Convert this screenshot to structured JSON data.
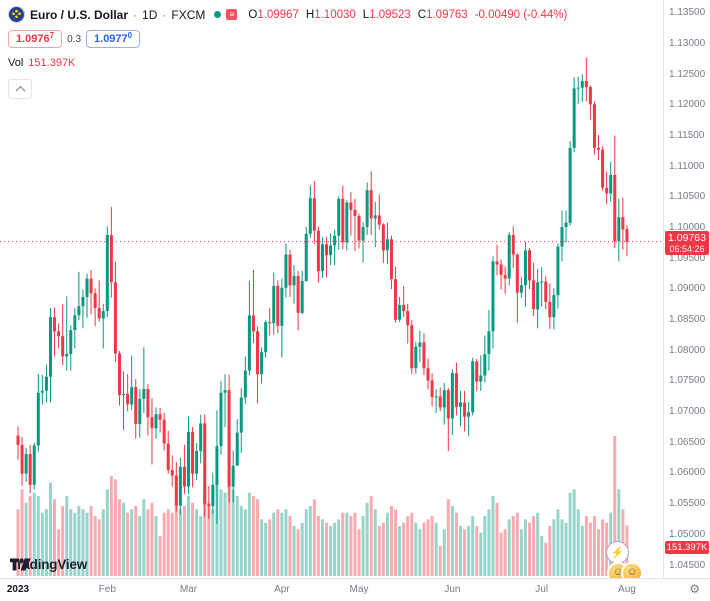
{
  "header": {
    "symbol": "Euro / U.S. Dollar",
    "sep": "·",
    "interval": "1D",
    "exchange": "FXCM",
    "ohlc": {
      "o_label": "O",
      "o": "1.09967",
      "h_label": "H",
      "h": "1.10030",
      "l_label": "L",
      "l": "1.09523",
      "c_label": "C",
      "c": "1.09763",
      "change": "-0.00490 (-0.44%)"
    },
    "bid": {
      "main": "1.0976",
      "sup": "7"
    },
    "spread": "0.3",
    "ask": {
      "main": "1.0977",
      "sup": "0"
    },
    "vol_label": "Vol",
    "vol_value": "151.397K"
  },
  "badges": {
    "price": "1.09763",
    "countdown": "06:54:26",
    "volume": "151.397K"
  },
  "footer": {
    "logo_text": "TradingView"
  },
  "icons": {
    "list_glyph": "≡",
    "zap_glyph": "⚡",
    "smile_glyph": "☺",
    "gear_glyph": "⚙"
  },
  "chart_data": {
    "type": "candlestick",
    "title": "Euro / U.S. Dollar",
    "symbol": "EUR/USD",
    "interval": "1D",
    "exchange": "FXCM",
    "current": {
      "open": 1.09967,
      "high": 1.1003,
      "low": 1.09523,
      "close": 1.09763,
      "change": -0.0049,
      "change_pct": -0.44,
      "volume_label": "151.397K"
    },
    "price_line": 1.09763,
    "colors": {
      "up": "#089981",
      "down": "#f23645",
      "vol_up": "rgba(8,153,129,0.42)",
      "vol_down": "rgba(242,54,69,0.42)",
      "axis_text": "#787b86",
      "badge": "#f23645",
      "buy": "#2962ff"
    },
    "y_axis": {
      "visible_range": [
        1.0428,
        1.137
      ],
      "tick_labels": [
        "1.13500",
        "1.13000",
        "1.12500",
        "1.12000",
        "1.11500",
        "1.11000",
        "1.10500",
        "1.10000",
        "1.09500",
        "1.09000",
        "1.08500",
        "1.08000",
        "1.07500",
        "1.07000",
        "1.06500",
        "1.06000",
        "1.05500",
        "1.05000",
        "1.04500"
      ]
    },
    "x_axis": {
      "labels": [
        {
          "text": "2023",
          "index": 0,
          "bold": true
        },
        {
          "text": "Feb",
          "index": 22,
          "bold": false
        },
        {
          "text": "Mar",
          "index": 42,
          "bold": false
        },
        {
          "text": "Apr",
          "index": 65,
          "bold": false
        },
        {
          "text": "May",
          "index": 84,
          "bold": false
        },
        {
          "text": "Jun",
          "index": 107,
          "bold": false
        },
        {
          "text": "Jul",
          "index": 129,
          "bold": false
        },
        {
          "text": "Aug",
          "index": 150,
          "bold": false
        }
      ]
    },
    "volume_unit": "K",
    "candles": [
      [
        1.066,
        1.0675,
        1.062,
        1.0645,
        200
      ],
      [
        1.0645,
        1.0658,
        1.0578,
        1.0598,
        260
      ],
      [
        1.0598,
        1.064,
        1.0585,
        1.063,
        220
      ],
      [
        1.063,
        1.0645,
        1.0566,
        1.058,
        240
      ],
      [
        1.058,
        1.0648,
        1.0572,
        1.0644,
        250
      ],
      [
        1.0644,
        1.0761,
        1.0633,
        1.073,
        240
      ],
      [
        1.073,
        1.0759,
        1.0711,
        1.0733,
        190
      ],
      [
        1.0733,
        1.0776,
        1.0714,
        1.0756,
        200
      ],
      [
        1.0756,
        1.0868,
        1.0714,
        1.0853,
        280
      ],
      [
        1.0853,
        1.0869,
        1.0789,
        1.083,
        230
      ],
      [
        1.083,
        1.0843,
        1.0802,
        1.0822,
        140
      ],
      [
        1.0822,
        1.0874,
        1.0775,
        1.0789,
        210
      ],
      [
        1.0789,
        1.0887,
        1.0766,
        1.0793,
        240
      ],
      [
        1.0793,
        1.084,
        1.0766,
        1.0832,
        200
      ],
      [
        1.0832,
        1.0868,
        1.0802,
        1.0856,
        190
      ],
      [
        1.0856,
        1.0927,
        1.0848,
        1.0871,
        210
      ],
      [
        1.0871,
        1.0898,
        1.0835,
        1.0886,
        200
      ],
      [
        1.0886,
        1.0924,
        1.0852,
        1.0916,
        190
      ],
      [
        1.0916,
        1.093,
        1.0858,
        1.0892,
        210
      ],
      [
        1.0892,
        1.09,
        1.0838,
        1.0868,
        180
      ],
      [
        1.0868,
        1.0913,
        1.0846,
        1.0851,
        170
      ],
      [
        1.0851,
        1.0875,
        1.0802,
        1.0863,
        200
      ],
      [
        1.0863,
        1.1001,
        1.0853,
        1.0987,
        260
      ],
      [
        1.0987,
        1.1033,
        1.0885,
        1.091,
        300
      ],
      [
        1.091,
        1.0944,
        1.078,
        1.0794,
        290
      ],
      [
        1.0794,
        1.0798,
        1.0709,
        1.0726,
        230
      ],
      [
        1.0726,
        1.0765,
        1.0669,
        1.0728,
        220
      ],
      [
        1.0728,
        1.076,
        1.07,
        1.0711,
        190
      ],
      [
        1.0711,
        1.0791,
        1.0702,
        1.0739,
        200
      ],
      [
        1.0739,
        1.0752,
        1.0655,
        1.0679,
        210
      ],
      [
        1.0679,
        1.0736,
        1.0657,
        1.072,
        180
      ],
      [
        1.072,
        1.0804,
        1.0697,
        1.0736,
        230
      ],
      [
        1.0736,
        1.0744,
        1.066,
        1.069,
        200
      ],
      [
        1.069,
        1.0721,
        1.0613,
        1.0672,
        220
      ],
      [
        1.0672,
        1.0706,
        1.0655,
        1.0695,
        180
      ],
      [
        1.0695,
        1.0705,
        1.0665,
        1.0686,
        120
      ],
      [
        1.0686,
        1.0697,
        1.0636,
        1.0647,
        190
      ],
      [
        1.0647,
        1.0668,
        1.0598,
        1.0604,
        200
      ],
      [
        1.0604,
        1.0628,
        1.0577,
        1.0595,
        190
      ],
      [
        1.0595,
        1.0617,
        1.0536,
        1.0546,
        230
      ],
      [
        1.0546,
        1.0624,
        1.0532,
        1.0609,
        200
      ],
      [
        1.0609,
        1.0645,
        1.0565,
        1.0577,
        210
      ],
      [
        1.0577,
        1.0691,
        1.0565,
        1.0666,
        240
      ],
      [
        1.0666,
        1.0674,
        1.0576,
        1.0598,
        220
      ],
      [
        1.0598,
        1.0648,
        1.0588,
        1.0635,
        200
      ],
      [
        1.0635,
        1.0694,
        1.0615,
        1.068,
        180
      ],
      [
        1.068,
        1.0695,
        1.0528,
        1.0548,
        260
      ],
      [
        1.0548,
        1.0578,
        1.0524,
        1.0545,
        220
      ],
      [
        1.0545,
        1.06,
        1.0533,
        1.058,
        200
      ],
      [
        1.058,
        1.0701,
        1.0516,
        1.0643,
        290
      ],
      [
        1.0643,
        1.0749,
        1.0629,
        1.073,
        260
      ],
      [
        1.073,
        1.076,
        1.0674,
        1.0734,
        250
      ],
      [
        1.0734,
        1.0759,
        1.0551,
        1.0577,
        290
      ],
      [
        1.0577,
        1.0636,
        1.0551,
        1.0611,
        260
      ],
      [
        1.0611,
        1.0687,
        1.0611,
        1.0665,
        240
      ],
      [
        1.0665,
        1.0738,
        1.0632,
        1.0722,
        210
      ],
      [
        1.0722,
        1.0789,
        1.0712,
        1.0766,
        200
      ],
      [
        1.0766,
        1.0912,
        1.0758,
        1.0856,
        250
      ],
      [
        1.0856,
        1.093,
        1.0811,
        1.083,
        240
      ],
      [
        1.083,
        1.0838,
        1.0713,
        1.076,
        230
      ],
      [
        1.076,
        1.0804,
        1.0745,
        1.0796,
        170
      ],
      [
        1.0796,
        1.0848,
        1.0787,
        1.0845,
        160
      ],
      [
        1.0845,
        1.0868,
        1.0823,
        1.0843,
        170
      ],
      [
        1.0843,
        1.0926,
        1.0824,
        1.0904,
        190
      ],
      [
        1.0904,
        1.0913,
        1.0827,
        1.0839,
        200
      ],
      [
        1.0839,
        1.0916,
        1.0788,
        1.0901,
        190
      ],
      [
        1.0901,
        1.0973,
        1.0885,
        1.0955,
        200
      ],
      [
        1.0955,
        1.0963,
        1.0886,
        1.0905,
        180
      ],
      [
        1.0905,
        1.0938,
        1.0875,
        1.092,
        150
      ],
      [
        1.092,
        1.0928,
        1.0831,
        1.086,
        140
      ],
      [
        1.086,
        1.0929,
        1.0858,
        1.0912,
        160
      ],
      [
        1.0912,
        1.1,
        1.0911,
        1.0989,
        200
      ],
      [
        1.0989,
        1.1068,
        1.0983,
        1.1047,
        210
      ],
      [
        1.1047,
        1.1075,
        1.0972,
        1.0994,
        230
      ],
      [
        1.0994,
        1.1,
        1.0909,
        1.0928,
        180
      ],
      [
        1.0928,
        1.0983,
        1.0917,
        1.0972,
        170
      ],
      [
        1.0972,
        1.0984,
        1.0918,
        1.0954,
        160
      ],
      [
        1.0954,
        1.099,
        1.0938,
        1.097,
        150
      ],
      [
        1.097,
        1.0996,
        1.0938,
        1.0986,
        160
      ],
      [
        1.0986,
        1.105,
        1.0963,
        1.1046,
        170
      ],
      [
        1.1046,
        1.1067,
        1.0964,
        1.0975,
        190
      ],
      [
        1.0975,
        1.1044,
        1.0962,
        1.104,
        190
      ],
      [
        1.104,
        1.1057,
        1.0986,
        1.1028,
        180
      ],
      [
        1.1028,
        1.1046,
        1.0961,
        1.1018,
        190
      ],
      [
        1.1018,
        1.1022,
        1.0965,
        1.0978,
        140
      ],
      [
        1.0978,
        1.1008,
        1.0942,
        1.1,
        180
      ],
      [
        1.1,
        1.1073,
        1.0987,
        1.106,
        220
      ],
      [
        1.106,
        1.1091,
        1.0987,
        1.1014,
        240
      ],
      [
        1.1014,
        1.1041,
        1.0967,
        1.1019,
        200
      ],
      [
        1.1019,
        1.1053,
        1.0996,
        1.1004,
        150
      ],
      [
        1.1004,
        1.1006,
        1.0941,
        1.0962,
        160
      ],
      [
        1.0962,
        1.1007,
        1.094,
        1.098,
        190
      ],
      [
        1.098,
        1.0986,
        1.0899,
        1.0915,
        210
      ],
      [
        1.0915,
        1.0935,
        1.0844,
        1.0849,
        200
      ],
      [
        1.0849,
        1.0886,
        1.0845,
        1.0873,
        150
      ],
      [
        1.0873,
        1.0904,
        1.0853,
        1.0863,
        160
      ],
      [
        1.0863,
        1.0875,
        1.081,
        1.084,
        180
      ],
      [
        1.084,
        1.0848,
        1.076,
        1.077,
        190
      ],
      [
        1.077,
        1.0813,
        1.0761,
        1.0805,
        160
      ],
      [
        1.0805,
        1.0831,
        1.078,
        1.0812,
        140
      ],
      [
        1.0812,
        1.0827,
        1.0759,
        1.077,
        160
      ],
      [
        1.077,
        1.0786,
        1.0735,
        1.075,
        170
      ],
      [
        1.075,
        1.0762,
        1.0708,
        1.0723,
        180
      ],
      [
        1.0723,
        1.0736,
        1.0697,
        1.0724,
        160
      ],
      [
        1.0724,
        1.0738,
        1.07,
        1.0706,
        90
      ],
      [
        1.0706,
        1.0746,
        1.0678,
        1.0734,
        140
      ],
      [
        1.0734,
        1.0738,
        1.0635,
        1.0688,
        230
      ],
      [
        1.0688,
        1.0768,
        1.0661,
        1.0762,
        210
      ],
      [
        1.0762,
        1.0779,
        1.0693,
        1.0707,
        190
      ],
      [
        1.0707,
        1.0733,
        1.0675,
        1.0714,
        150
      ],
      [
        1.0714,
        1.0733,
        1.0667,
        1.0691,
        140
      ],
      [
        1.0691,
        1.0715,
        1.0659,
        1.0698,
        150
      ],
      [
        1.0698,
        1.0787,
        1.0693,
        1.0781,
        180
      ],
      [
        1.0781,
        1.0785,
        1.0733,
        1.0748,
        150
      ],
      [
        1.0748,
        1.0791,
        1.0733,
        1.0758,
        130
      ],
      [
        1.0758,
        1.0823,
        1.0747,
        1.0793,
        180
      ],
      [
        1.0793,
        1.0865,
        1.0766,
        1.083,
        200
      ],
      [
        1.083,
        1.0952,
        1.0802,
        1.0944,
        240
      ],
      [
        1.0944,
        1.0971,
        1.0921,
        1.0939,
        220
      ],
      [
        1.0939,
        1.0947,
        1.0898,
        1.0922,
        130
      ],
      [
        1.0922,
        1.0936,
        1.0891,
        1.0916,
        140
      ],
      [
        1.0916,
        1.0992,
        1.0905,
        1.0987,
        170
      ],
      [
        1.0987,
        1.1001,
        1.0933,
        1.0955,
        180
      ],
      [
        1.0955,
        1.0957,
        1.0844,
        1.0893,
        190
      ],
      [
        1.0893,
        1.0918,
        1.0885,
        1.0905,
        140
      ],
      [
        1.0905,
        1.0976,
        1.087,
        1.0962,
        170
      ],
      [
        1.0962,
        1.0966,
        1.0899,
        1.0913,
        160
      ],
      [
        1.0913,
        1.0942,
        1.0855,
        1.0866,
        180
      ],
      [
        1.0866,
        1.0932,
        1.0835,
        1.091,
        190
      ],
      [
        1.091,
        1.0935,
        1.087,
        1.0911,
        120
      ],
      [
        1.0911,
        1.092,
        1.0866,
        1.0878,
        100
      ],
      [
        1.0878,
        1.0908,
        1.0834,
        1.0853,
        150
      ],
      [
        1.0853,
        1.09,
        1.0833,
        1.0889,
        170
      ],
      [
        1.0889,
        1.0973,
        1.0867,
        1.0968,
        200
      ],
      [
        1.0968,
        1.1027,
        1.0944,
        1.1,
        170
      ],
      [
        1.1,
        1.1027,
        1.0975,
        1.1007,
        160
      ],
      [
        1.1007,
        1.114,
        1.1002,
        1.1129,
        250
      ],
      [
        1.1129,
        1.1244,
        1.1122,
        1.1226,
        260
      ],
      [
        1.1226,
        1.1245,
        1.1201,
        1.1227,
        200
      ],
      [
        1.1227,
        1.1249,
        1.1204,
        1.1238,
        150
      ],
      [
        1.1238,
        1.1276,
        1.1205,
        1.1228,
        180
      ],
      [
        1.1228,
        1.1231,
        1.1175,
        1.12,
        160
      ],
      [
        1.12,
        1.1205,
        1.1118,
        1.1129,
        180
      ],
      [
        1.1129,
        1.115,
        1.1109,
        1.1126,
        140
      ],
      [
        1.1126,
        1.1132,
        1.1059,
        1.1064,
        170
      ],
      [
        1.1064,
        1.109,
        1.1037,
        1.1055,
        160
      ],
      [
        1.1055,
        1.1106,
        1.1041,
        1.1085,
        190
      ],
      [
        1.1085,
        1.1149,
        1.0966,
        1.0977,
        420
      ],
      [
        1.0977,
        1.1046,
        1.0944,
        1.1016,
        260
      ],
      [
        1.1016,
        1.1048,
        1.0963,
        1.0996,
        200
      ],
      [
        1.09967,
        1.1003,
        1.09523,
        1.09763,
        151.4
      ]
    ]
  }
}
